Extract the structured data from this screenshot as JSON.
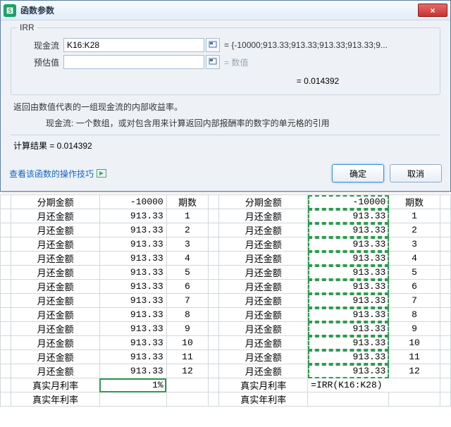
{
  "dialog": {
    "title": "函数参数",
    "close_icon": "×",
    "group_title": "IRR",
    "fields": {
      "cashflow": {
        "label": "现金流",
        "value": "K16:K28",
        "result": "= {-10000;913.33;913.33;913.33;913.33;9..."
      },
      "guess": {
        "label": "预估值",
        "value": "",
        "result_label": "= 数值"
      }
    },
    "main_result": "= 0.014392",
    "description": "返回由数值代表的一组现金流的内部收益率。",
    "param_desc": "现金流:  一个数组，或对包含用来计算返回内部报酬率的数字的单元格的引用",
    "calc_result_label": "计算结果 = 0.014392",
    "help_link": "查看该函数的操作技巧",
    "ok_label": "确定",
    "cancel_label": "取消"
  },
  "sheet": {
    "headers_left": [
      "分期金额",
      "-10000",
      "期数"
    ],
    "headers_right": [
      "分期金额",
      "-10000",
      "期数"
    ],
    "row_label": "月还金额",
    "row_value": "913.33",
    "periods": [
      "1",
      "2",
      "3",
      "4",
      "5",
      "6",
      "7",
      "8",
      "9",
      "10",
      "11",
      "12"
    ],
    "monthly_rate_label": "真实月利率",
    "monthly_rate_left": "1%",
    "monthly_rate_right": "=IRR(K16:K28)",
    "annual_rate_label": "真实年利率",
    "colors": {
      "grid": "#d0d7de",
      "selection": "#2e9b4f"
    }
  }
}
